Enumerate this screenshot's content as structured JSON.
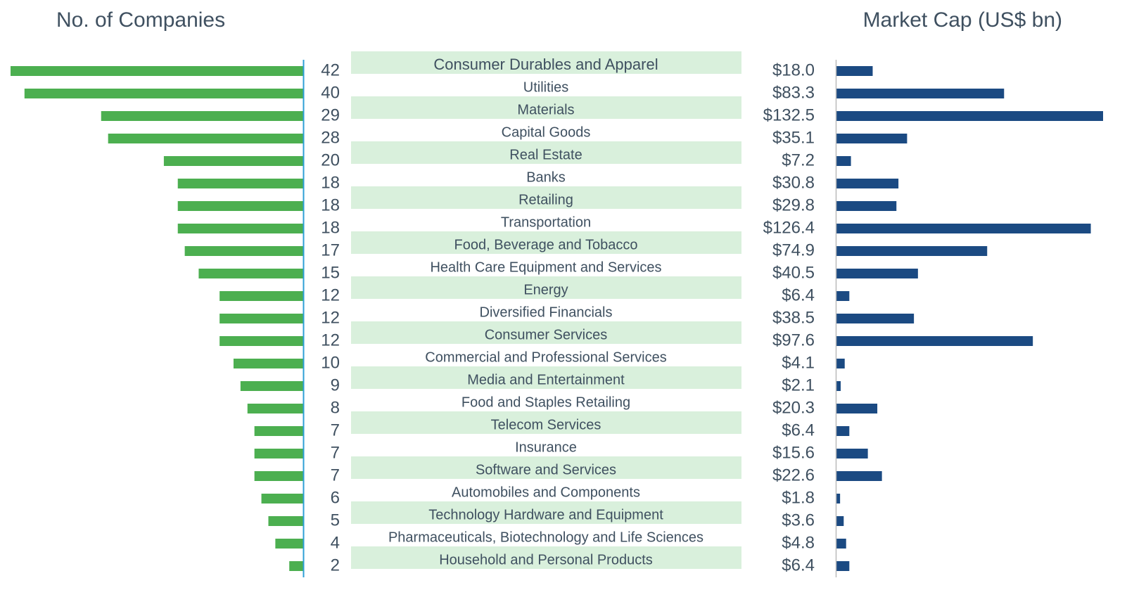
{
  "chart_data": {
    "type": "butterfly",
    "categories": [
      "Consumer Durables and Apparel",
      "Utilities",
      "Materials",
      "Capital Goods",
      "Real Estate",
      "Banks",
      "Retailing",
      "Transportation",
      "Food, Beverage and Tobacco",
      "Health Care Equipment and Services",
      "Energy",
      "Diversified Financials",
      "Consumer Services",
      "Commercial and Professional Services",
      "Media and Entertainment",
      "Food and Staples Retailing",
      "Telecom Services",
      "Insurance",
      "Software and Services",
      "Automobiles and Components",
      "Technology Hardware and Equipment",
      "Pharmaceuticals, Biotechnology and Life Sciences",
      "Household and Personal Products"
    ],
    "series": [
      {
        "name": "No. of Companies",
        "color": "#4caf50",
        "values": [
          42,
          40,
          29,
          28,
          20,
          18,
          18,
          18,
          17,
          15,
          12,
          12,
          12,
          10,
          9,
          8,
          7,
          7,
          7,
          6,
          5,
          4,
          2
        ]
      },
      {
        "name": "Market Cap (US$ bn)",
        "color": "#1b4a82",
        "values": [
          18.0,
          83.3,
          132.5,
          35.1,
          7.2,
          30.8,
          29.8,
          126.4,
          74.9,
          40.5,
          6.4,
          38.5,
          97.6,
          4.1,
          2.1,
          20.3,
          6.4,
          15.6,
          22.6,
          1.8,
          3.6,
          4.8,
          6.4
        ],
        "value_labels": [
          "$18.0",
          "$83.3",
          "$132.5",
          "$35.1",
          "$7.2",
          "$30.8",
          "$29.8",
          "$126.4",
          "$74.9",
          "$40.5",
          "$6.4",
          "$38.5",
          "$97.6",
          "$4.1",
          "$2.1",
          "$20.3",
          "$6.4",
          "$15.6",
          "$22.6",
          "$1.8",
          "$3.6",
          "$4.8",
          "$6.4"
        ]
      }
    ]
  }
}
